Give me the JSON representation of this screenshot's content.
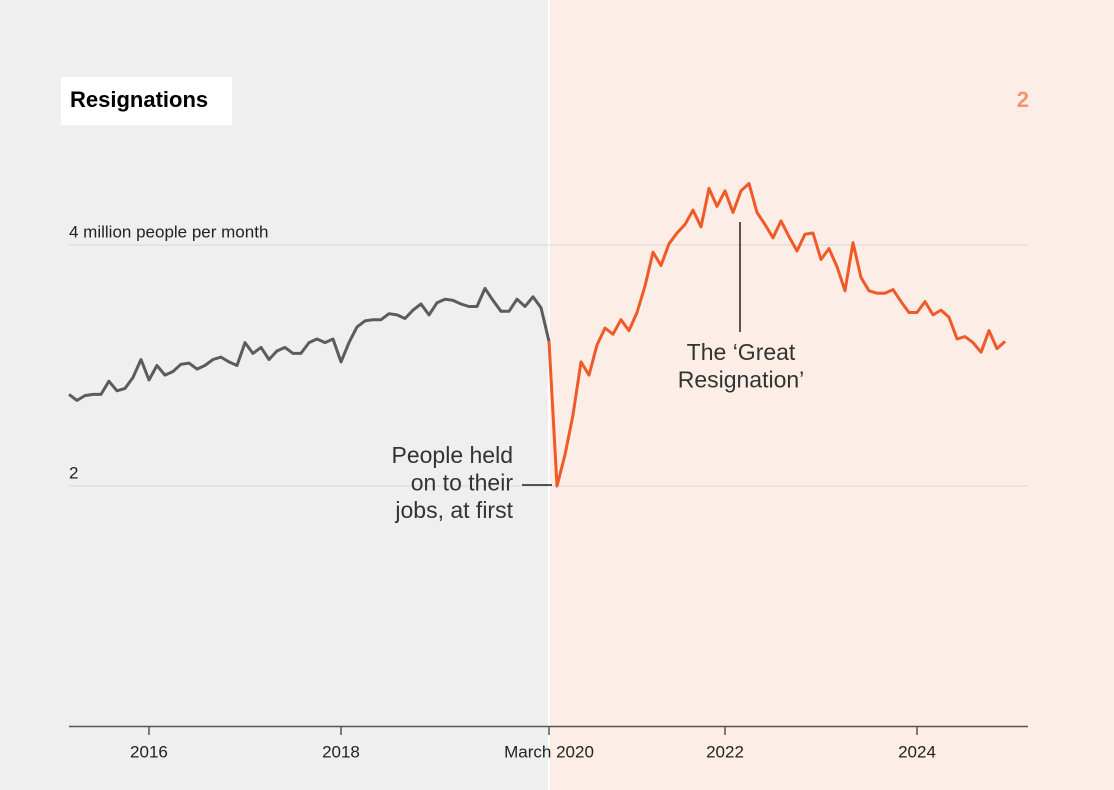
{
  "chart_data": {
    "type": "line",
    "title": "Resignations",
    "step": "2",
    "x": [
      2015.167,
      2015.25,
      2015.333,
      2015.417,
      2015.5,
      2015.583,
      2015.667,
      2015.75,
      2015.833,
      2015.917,
      2016,
      2016.083,
      2016.167,
      2016.25,
      2016.333,
      2016.417,
      2016.5,
      2016.583,
      2016.667,
      2016.75,
      2016.833,
      2016.917,
      2017,
      2017.083,
      2017.167,
      2017.25,
      2017.333,
      2017.417,
      2017.5,
      2017.583,
      2017.667,
      2017.75,
      2017.833,
      2017.917,
      2018,
      2018.083,
      2018.167,
      2018.25,
      2018.333,
      2018.417,
      2018.5,
      2018.583,
      2018.667,
      2018.75,
      2018.833,
      2018.917,
      2019,
      2019.083,
      2019.167,
      2019.25,
      2019.333,
      2019.417,
      2019.5,
      2019.583,
      2019.667,
      2019.75,
      2019.833,
      2019.917,
      2020,
      2020.083,
      2020.167,
      2020.25,
      2020.333,
      2020.417,
      2020.5,
      2020.583,
      2020.667,
      2020.75,
      2020.833,
      2020.917,
      2021,
      2021.083,
      2021.167,
      2021.25,
      2021.333,
      2021.417,
      2021.5,
      2021.583,
      2021.667,
      2021.75,
      2021.833,
      2021.917,
      2022,
      2022.083,
      2022.167,
      2022.25,
      2022.333,
      2022.417,
      2022.5,
      2022.583,
      2022.667,
      2022.75,
      2022.833,
      2022.917,
      2023,
      2023.083,
      2023.167,
      2023.25,
      2023.333,
      2023.417,
      2023.5,
      2023.583,
      2023.667,
      2023.75,
      2023.833,
      2023.917,
      2024,
      2024.083,
      2024.167,
      2024.25,
      2024.333,
      2024.417,
      2024.5,
      2024.583,
      2024.667,
      2024.75,
      2024.833,
      2024.917
    ],
    "values": [
      2.76,
      2.71,
      2.75,
      2.76,
      2.76,
      2.87,
      2.79,
      2.81,
      2.9,
      3.05,
      2.88,
      3.0,
      2.92,
      2.95,
      3.01,
      3.02,
      2.97,
      3.0,
      3.05,
      3.07,
      3.03,
      3.0,
      3.19,
      3.1,
      3.15,
      3.05,
      3.12,
      3.15,
      3.1,
      3.1,
      3.19,
      3.22,
      3.19,
      3.22,
      3.03,
      3.19,
      3.32,
      3.37,
      3.38,
      3.38,
      3.43,
      3.42,
      3.39,
      3.46,
      3.51,
      3.42,
      3.52,
      3.55,
      3.54,
      3.51,
      3.49,
      3.49,
      3.64,
      3.54,
      3.45,
      3.45,
      3.55,
      3.49,
      3.57,
      3.48,
      3.2,
      2.0,
      2.26,
      2.59,
      3.03,
      2.92,
      3.17,
      3.31,
      3.26,
      3.38,
      3.29,
      3.44,
      3.66,
      3.94,
      3.83,
      4.01,
      4.1,
      4.17,
      4.29,
      4.15,
      4.47,
      4.32,
      4.45,
      4.27,
      4.45,
      4.51,
      4.27,
      4.17,
      4.06,
      4.2,
      4.07,
      3.95,
      4.09,
      4.1,
      3.88,
      3.97,
      3.82,
      3.62,
      4.02,
      3.73,
      3.62,
      3.6,
      3.6,
      3.63,
      3.53,
      3.44,
      3.44,
      3.53,
      3.42,
      3.46,
      3.4,
      3.22,
      3.24,
      3.19,
      3.11,
      3.29,
      3.14,
      3.2
    ],
    "color": "#5c5c5c",
    "highlight": {
      "x": 2020.167,
      "color": "#f05a28",
      "background": "#fcede6"
    },
    "xlim": [
      2015.167,
      2025.156
    ],
    "xticks": [
      2016,
      2018,
      {
        "value": 2020.167,
        "label": "March 2020"
      },
      2022,
      2024
    ],
    "ylim": [
      0,
      4.8
    ],
    "yticks": [
      {
        "value": 2,
        "label": "2"
      },
      {
        "value": 4,
        "label": "4 million people per month"
      }
    ],
    "grid": true,
    "annotations": [
      {
        "lines": [
          "The ‘Great",
          "Resignation’"
        ]
      },
      {
        "lines": [
          "People held",
          "on to their",
          "jobs, at first"
        ]
      }
    ]
  }
}
